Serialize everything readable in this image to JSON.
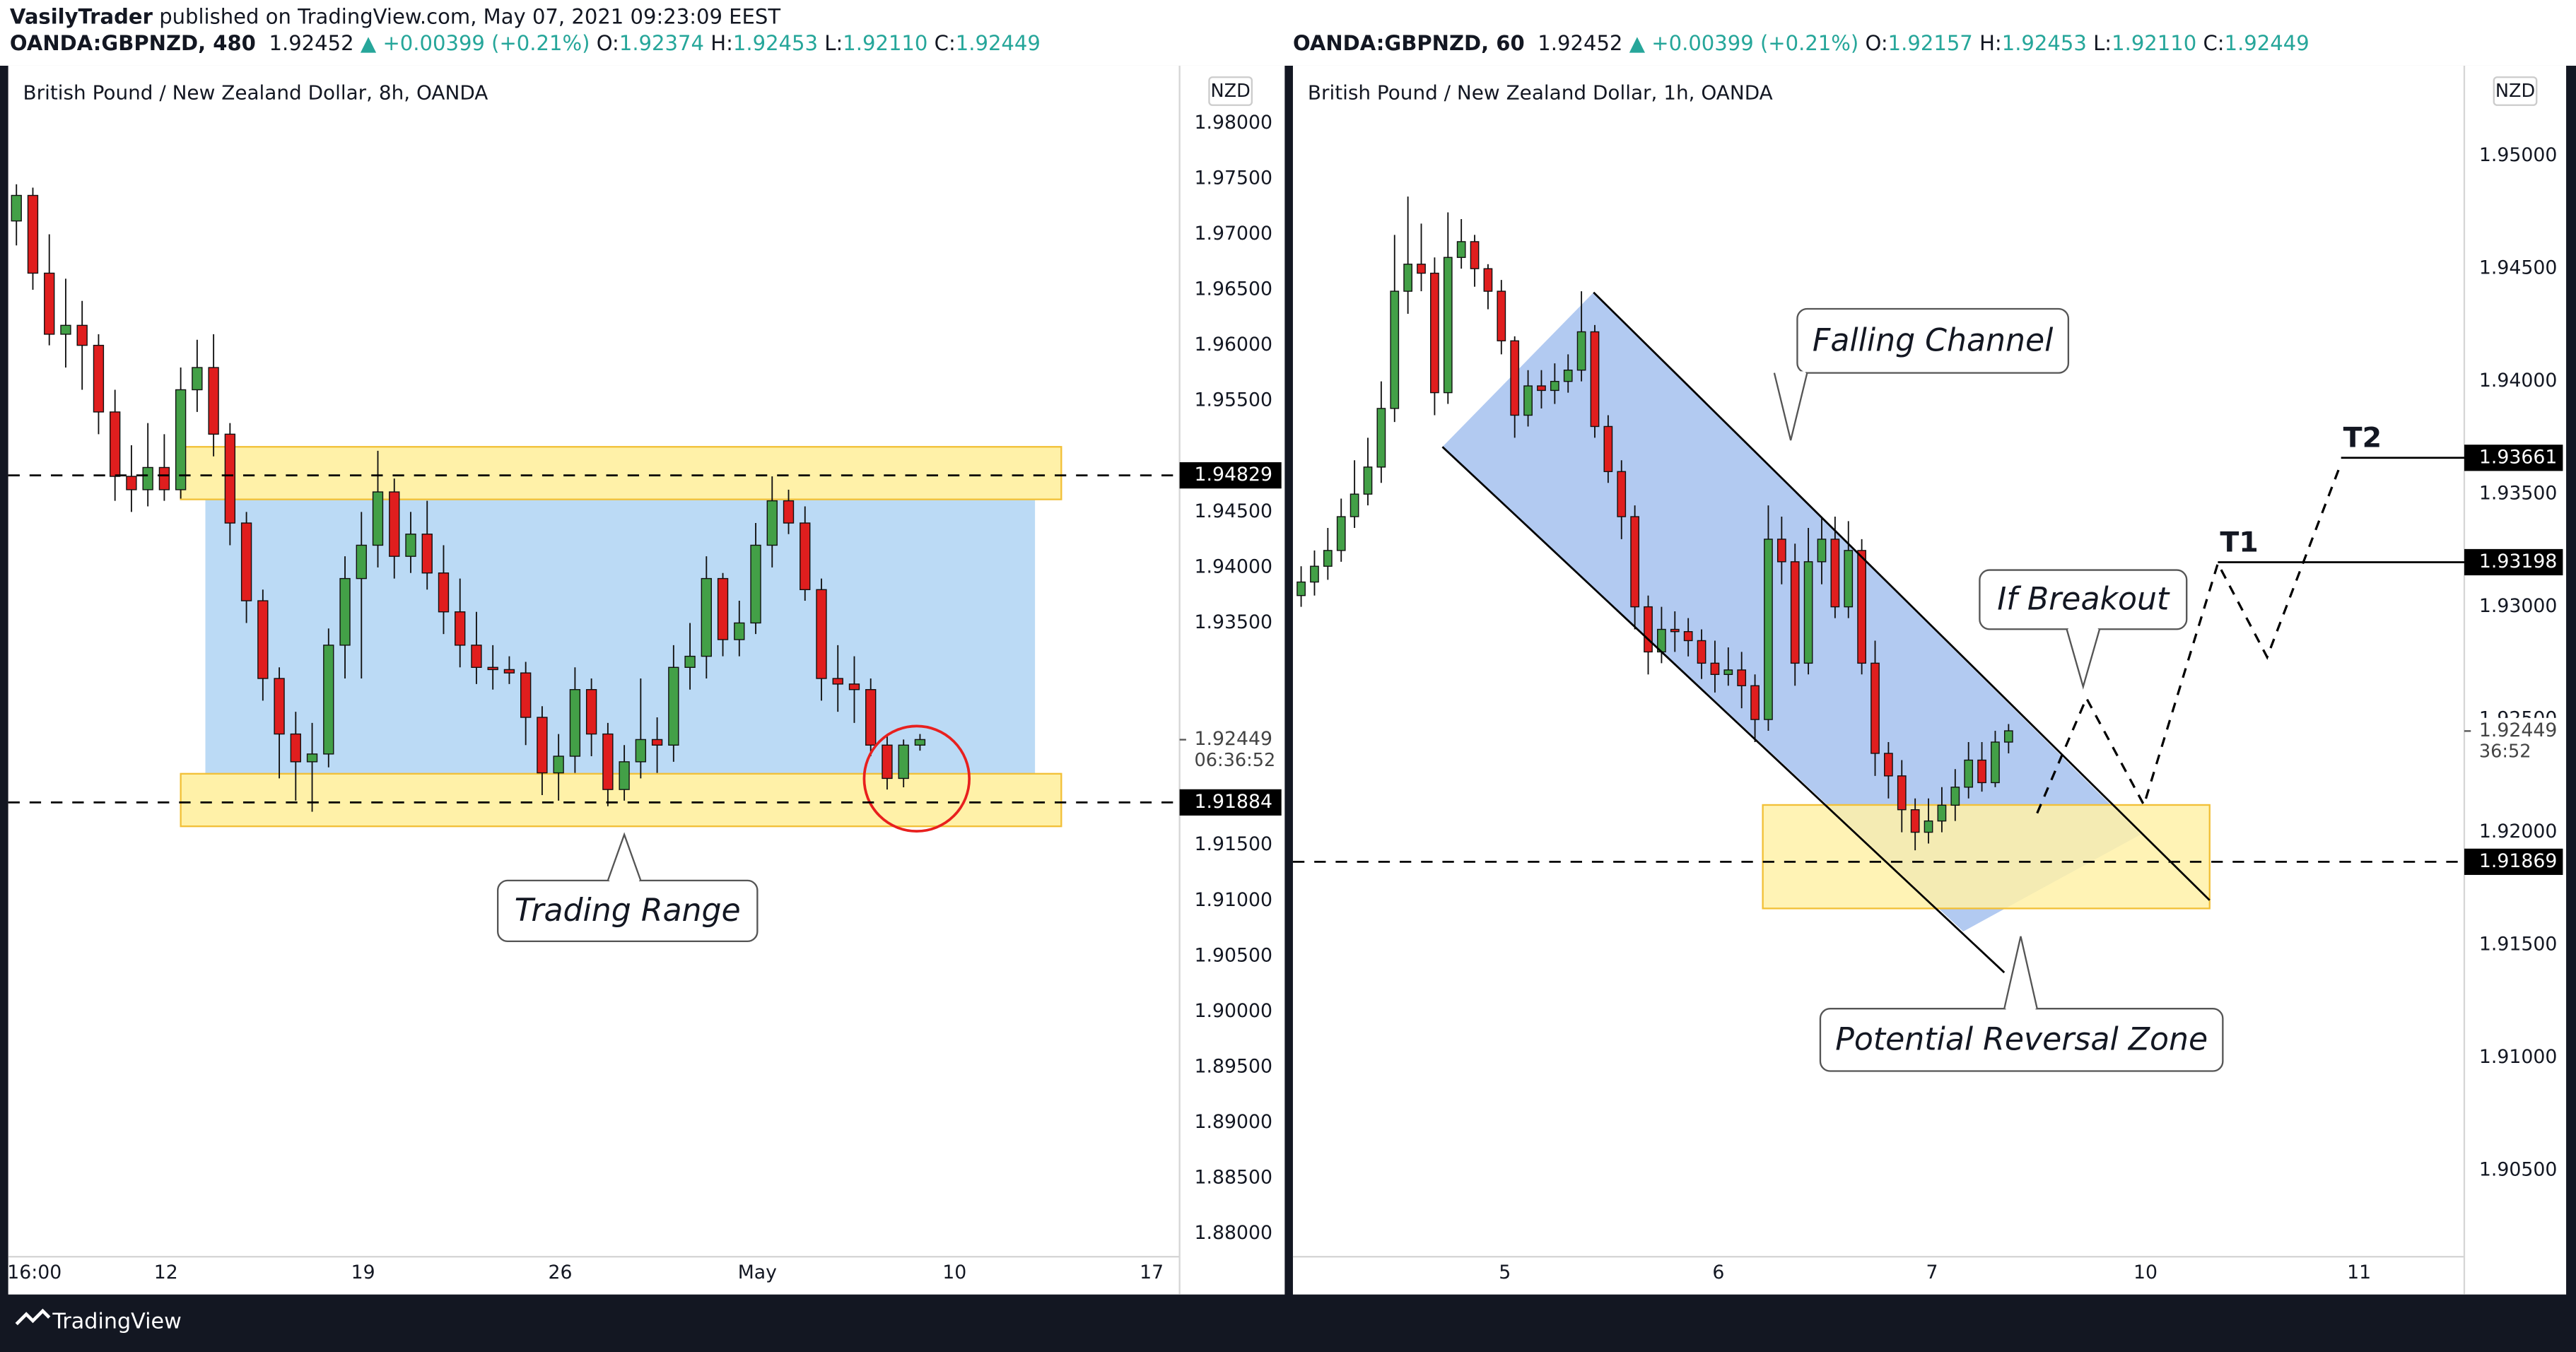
{
  "header": {
    "author": "VasilyTrader",
    "published": "published on TradingView.com, May 07, 2021 09:23:09 EEST",
    "brand": "TradingView"
  },
  "chart_data": [
    {
      "type": "candlestick",
      "title": "British Pound / New Zealand Dollar, 8h, OANDA",
      "currency": "NZD",
      "quote": {
        "symbol": "OANDA:GBPNZD, 480",
        "price": "1.92452",
        "change": "▲ +0.00399 (+0.21%)",
        "keys": [
          "O:",
          "H:",
          "L:",
          "C:"
        ],
        "values": [
          "1.92374",
          "1.92453",
          "1.92110",
          "1.92449"
        ]
      },
      "up_color": "#43a047",
      "down_color": "#e01e1e",
      "grid": false,
      "open": [
        1.9712,
        1.9735,
        1.9665,
        1.961,
        1.9618,
        1.96,
        1.954,
        1.9482,
        1.947,
        1.949,
        1.947,
        1.956,
        1.958,
        1.952,
        1.944,
        1.937,
        1.93,
        1.925,
        1.9225,
        1.9232,
        1.933,
        1.939,
        1.942,
        1.9468,
        1.941,
        1.943,
        1.9395,
        1.936,
        1.933,
        1.931,
        1.9308,
        1.9305,
        1.9265,
        1.9215,
        1.923,
        1.929,
        1.925,
        1.92,
        1.9225,
        1.9245,
        1.924,
        1.931,
        1.932,
        1.939,
        1.9335,
        1.935,
        1.942,
        1.946,
        1.944,
        1.938,
        1.93,
        1.9295,
        1.929,
        1.924,
        1.921,
        1.924
      ],
      "high": [
        1.9745,
        1.9742,
        1.97,
        1.966,
        1.964,
        1.961,
        1.956,
        1.951,
        1.953,
        1.952,
        1.958,
        1.9605,
        1.961,
        1.953,
        1.945,
        1.938,
        1.931,
        1.927,
        1.926,
        1.9345,
        1.941,
        1.945,
        1.9505,
        1.948,
        1.945,
        1.946,
        1.942,
        1.939,
        1.936,
        1.933,
        1.932,
        1.9315,
        1.9275,
        1.925,
        1.931,
        1.93,
        1.926,
        1.924,
        1.93,
        1.9265,
        1.933,
        1.935,
        1.941,
        1.9395,
        1.937,
        1.944,
        1.9482,
        1.947,
        1.9455,
        1.939,
        1.933,
        1.932,
        1.93,
        1.925,
        1.9245,
        1.925
      ],
      "low": [
        1.969,
        1.965,
        1.96,
        1.958,
        1.956,
        1.952,
        1.946,
        1.945,
        1.9455,
        1.946,
        1.9462,
        1.954,
        1.95,
        1.942,
        1.935,
        1.928,
        1.921,
        1.919,
        1.918,
        1.922,
        1.93,
        1.93,
        1.94,
        1.939,
        1.9395,
        1.938,
        1.934,
        1.931,
        1.9295,
        1.929,
        1.9295,
        1.924,
        1.9195,
        1.919,
        1.9215,
        1.923,
        1.9185,
        1.919,
        1.921,
        1.9215,
        1.9225,
        1.929,
        1.93,
        1.932,
        1.932,
        1.934,
        1.94,
        1.943,
        1.937,
        1.928,
        1.927,
        1.926,
        1.923,
        1.92,
        1.9202,
        1.9235
      ],
      "close": [
        1.9735,
        1.9665,
        1.961,
        1.9618,
        1.96,
        1.954,
        1.9482,
        1.947,
        1.949,
        1.947,
        1.956,
        1.958,
        1.952,
        1.944,
        1.937,
        1.93,
        1.925,
        1.9225,
        1.9232,
        1.933,
        1.939,
        1.942,
        1.9468,
        1.941,
        1.943,
        1.9395,
        1.936,
        1.933,
        1.931,
        1.9308,
        1.9305,
        1.9265,
        1.9215,
        1.923,
        1.929,
        1.925,
        1.92,
        1.9225,
        1.9245,
        1.924,
        1.931,
        1.932,
        1.939,
        1.9335,
        1.935,
        1.942,
        1.946,
        1.944,
        1.938,
        1.93,
        1.9295,
        1.929,
        1.924,
        1.921,
        1.924,
        1.9245
      ],
      "xlim": [
        -0.5,
        70.8
      ],
      "xticks": [
        {
          "value": 1.1,
          "label": "16:00"
        },
        {
          "value": 9.1,
          "label": "12"
        },
        {
          "value": 21.1,
          "label": "19"
        },
        {
          "value": 33.1,
          "label": "26"
        },
        {
          "value": 45.1,
          "label": "May"
        },
        {
          "value": 57.1,
          "label": "10"
        },
        {
          "value": 69.1,
          "label": "17"
        }
      ],
      "ylim": [
        1.87793,
        1.98444
      ],
      "yticks": [
        {
          "value": 1.88,
          "label": "1.88000"
        },
        {
          "value": 1.885,
          "label": "1.88500"
        },
        {
          "value": 1.89,
          "label": "1.89000"
        },
        {
          "value": 1.895,
          "label": "1.89500"
        },
        {
          "value": 1.9,
          "label": "1.90000"
        },
        {
          "value": 1.905,
          "label": "1.90500"
        },
        {
          "value": 1.91,
          "label": "1.91000"
        },
        {
          "value": 1.915,
          "label": "1.91500"
        },
        {
          "value": 1.935,
          "label": "1.93500"
        },
        {
          "value": 1.94,
          "label": "1.94000"
        },
        {
          "value": 1.945,
          "label": "1.94500"
        },
        {
          "value": 1.955,
          "label": "1.95500"
        },
        {
          "value": 1.96,
          "label": "1.96000"
        },
        {
          "value": 1.965,
          "label": "1.96500"
        },
        {
          "value": 1.97,
          "label": "1.97000"
        },
        {
          "value": 1.975,
          "label": "1.97500"
        },
        {
          "value": 1.98,
          "label": "1.98000"
        }
      ],
      "levels": [
        {
          "value": 1.94829,
          "label": "1.94829",
          "dashed": true
        },
        {
          "value": 1.91884,
          "label": "1.91884",
          "dashed": true
        }
      ],
      "last_price": {
        "value": 1.92449,
        "label": "1.92449"
      },
      "countdown": "06:36:52",
      "annotations": [
        "Trading Range"
      ]
    },
    {
      "type": "candlestick",
      "title": "British Pound / New Zealand Dollar, 1h, OANDA",
      "currency": "NZD",
      "quote": {
        "symbol": "OANDA:GBPNZD, 60",
        "price": "1.92452",
        "change": "▲ +0.00399 (+0.21%)",
        "keys": [
          "O:",
          "H:",
          "L:",
          "C:"
        ],
        "values": [
          "1.92157",
          "1.92453",
          "1.92110",
          "1.92449"
        ]
      },
      "up_color": "#43a047",
      "down_color": "#e01e1e",
      "grid": false,
      "open": [
        1.9305,
        1.9311,
        1.9318,
        1.9325,
        1.934,
        1.935,
        1.9362,
        1.9388,
        1.944,
        1.9452,
        1.9448,
        1.9395,
        1.9455,
        1.9462,
        1.945,
        1.944,
        1.9418,
        1.9385,
        1.9398,
        1.9396,
        1.94,
        1.9405,
        1.9422,
        1.938,
        1.936,
        1.934,
        1.93,
        1.928,
        1.929,
        1.9289,
        1.9285,
        1.9275,
        1.927,
        1.9272,
        1.9265,
        1.925,
        1.933,
        1.932,
        1.9275,
        1.932,
        1.933,
        1.93,
        1.9325,
        1.9275,
        1.9235,
        1.9225,
        1.921,
        1.92,
        1.9205,
        1.9212,
        1.922,
        1.9232,
        1.9222,
        1.924
      ],
      "high": [
        1.9318,
        1.9325,
        1.9335,
        1.9348,
        1.9365,
        1.9375,
        1.94,
        1.9465,
        1.9482,
        1.947,
        1.9455,
        1.9475,
        1.9472,
        1.9465,
        1.9452,
        1.9445,
        1.942,
        1.9405,
        1.9405,
        1.9408,
        1.9412,
        1.944,
        1.9425,
        1.9385,
        1.9365,
        1.9345,
        1.9305,
        1.93,
        1.9298,
        1.9295,
        1.929,
        1.9285,
        1.9282,
        1.928,
        1.927,
        1.9345,
        1.934,
        1.9328,
        1.9335,
        1.934,
        1.934,
        1.9338,
        1.933,
        1.9285,
        1.924,
        1.9232,
        1.9215,
        1.9215,
        1.922,
        1.9228,
        1.924,
        1.924,
        1.9245,
        1.9248
      ],
      "low": [
        1.93,
        1.9305,
        1.9312,
        1.932,
        1.9335,
        1.9345,
        1.9355,
        1.9382,
        1.943,
        1.944,
        1.9385,
        1.939,
        1.945,
        1.9442,
        1.9432,
        1.9412,
        1.9375,
        1.938,
        1.9388,
        1.939,
        1.9395,
        1.94,
        1.9375,
        1.9355,
        1.933,
        1.929,
        1.927,
        1.9275,
        1.928,
        1.9278,
        1.9268,
        1.9262,
        1.9265,
        1.9255,
        1.924,
        1.9245,
        1.931,
        1.9265,
        1.927,
        1.931,
        1.9295,
        1.9295,
        1.927,
        1.9225,
        1.9215,
        1.92,
        1.9192,
        1.9195,
        1.92,
        1.9205,
        1.9215,
        1.9218,
        1.922,
        1.9235
      ],
      "close": [
        1.9311,
        1.9318,
        1.9325,
        1.934,
        1.935,
        1.9362,
        1.9388,
        1.944,
        1.9452,
        1.9448,
        1.9395,
        1.9455,
        1.9462,
        1.945,
        1.944,
        1.9418,
        1.9385,
        1.9398,
        1.9396,
        1.94,
        1.9405,
        1.9422,
        1.938,
        1.936,
        1.934,
        1.93,
        1.928,
        1.929,
        1.9289,
        1.9285,
        1.9275,
        1.927,
        1.9272,
        1.9265,
        1.925,
        1.933,
        1.932,
        1.9275,
        1.932,
        1.933,
        1.93,
        1.9325,
        1.9275,
        1.9235,
        1.9225,
        1.921,
        1.92,
        1.9205,
        1.9212,
        1.922,
        1.9232,
        1.9222,
        1.924,
        1.9245
      ],
      "xlim": [
        -0.615,
        87.14
      ],
      "xticks": [
        {
          "value": 15.26,
          "label": "5"
        },
        {
          "value": 31.26,
          "label": "6"
        },
        {
          "value": 47.26,
          "label": "7"
        },
        {
          "value": 63.26,
          "label": "10"
        },
        {
          "value": 79.26,
          "label": "11"
        }
      ],
      "ylim": [
        1.90117,
        1.95364
      ],
      "yticks": [
        {
          "value": 1.905,
          "label": "1.90500"
        },
        {
          "value": 1.91,
          "label": "1.91000"
        },
        {
          "value": 1.915,
          "label": "1.91500"
        },
        {
          "value": 1.92,
          "label": "1.92000"
        },
        {
          "value": 1.925,
          "label": "1.92500"
        },
        {
          "value": 1.93,
          "label": "1.93000"
        },
        {
          "value": 1.935,
          "label": "1.93500"
        },
        {
          "value": 1.94,
          "label": "1.94000"
        },
        {
          "value": 1.945,
          "label": "1.94500"
        },
        {
          "value": 1.95,
          "label": "1.95000"
        }
      ],
      "levels": [
        {
          "value": 1.91869,
          "label": "1.91869",
          "dashed": true
        },
        {
          "value": 1.93198,
          "label": "1.93198",
          "name": "T1",
          "dashed": false
        },
        {
          "value": 1.93661,
          "label": "1.93661",
          "name": "T2",
          "dashed": false
        }
      ],
      "last_price": {
        "value": 1.92449,
        "label": "1.92449"
      },
      "countdown": "36:52",
      "annotations": [
        "Falling Channel",
        "If Breakout",
        "Potential Reversal Zone"
      ]
    }
  ]
}
